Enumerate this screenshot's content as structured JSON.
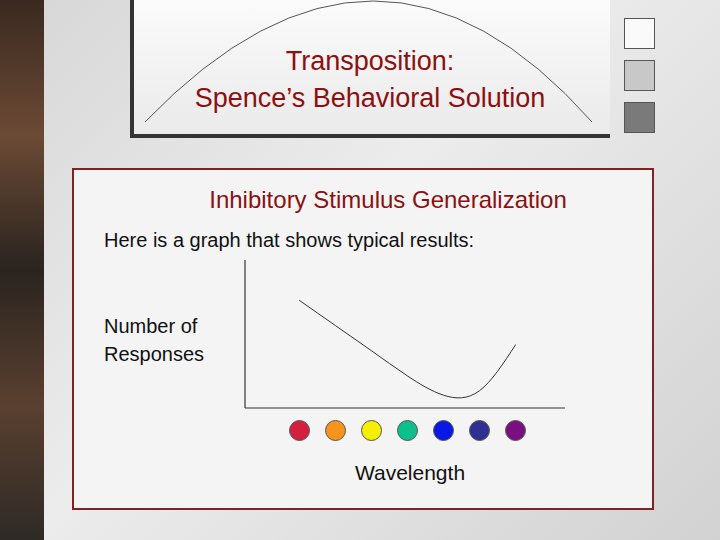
{
  "slide": {
    "title": [
      "Transposition:",
      "Spence’s Behavioral Solution"
    ],
    "heading": "Inhibitory Stimulus Generalization",
    "intro": "Here is a graph that shows typical results:"
  },
  "chart_data": {
    "type": "line",
    "xlabel": "Wavelength",
    "ylabel": "Number of Responses",
    "categories": [
      null,
      null,
      null,
      null,
      null,
      null,
      null
    ],
    "values": [
      73,
      56,
      39,
      22,
      9,
      12,
      43
    ],
    "colors": [
      "#d41f3f",
      "#f7941d",
      "#f5ef00",
      "#0cc08c",
      "#0a18e6",
      "#2e3192",
      "#7a0f80"
    ],
    "marker": "circle",
    "ylim": [
      0,
      100
    ],
    "yticks": [],
    "tick_labels": false
  }
}
